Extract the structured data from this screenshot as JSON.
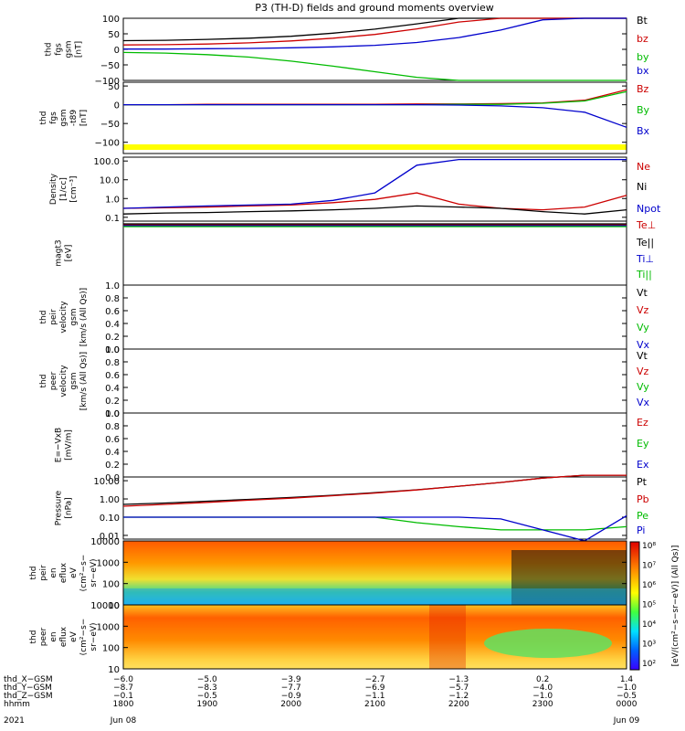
{
  "title": "P3 (TH-D) fields and ground moments overview",
  "chart_data": [
    {
      "id": "fgs_gsm",
      "type": "line",
      "ylabel_lines": [
        "thd",
        "fgs",
        "gsm",
        "[nT]"
      ],
      "yticks": [
        "100",
        "50",
        "0",
        "−50",
        "−100"
      ],
      "ylim": [
        -100,
        100
      ],
      "series": [
        {
          "name": "Bt",
          "color": "#000000",
          "values": [
            28,
            29,
            32,
            36,
            42,
            52,
            65,
            82,
            100,
            100,
            100,
            100,
            100
          ]
        },
        {
          "name": "bz",
          "color": "#cc0000",
          "values": [
            14,
            15,
            17,
            21,
            27,
            36,
            48,
            66,
            88,
            100,
            100,
            100,
            100
          ]
        },
        {
          "name": "by",
          "color": "#00bb00",
          "values": [
            -10,
            -12,
            -17,
            -25,
            -38,
            -54,
            -72,
            -90,
            -100,
            -100,
            -100,
            -100,
            -100
          ]
        },
        {
          "name": "bx",
          "color": "#0000cc",
          "values": [
            1,
            1,
            2,
            3,
            5,
            8,
            13,
            22,
            38,
            62,
            95,
            100,
            100
          ]
        }
      ]
    },
    {
      "id": "fgs_gsm_t89",
      "type": "line",
      "ylabel_lines": [
        "thd",
        "fgs",
        "gsm",
        "-t89",
        "[nT]"
      ],
      "yticks": [
        "50",
        "0",
        "−50",
        "−100"
      ],
      "ylim": [
        -130,
        60
      ],
      "series": [
        {
          "name": "Bz",
          "color": "#cc0000",
          "values": [
            0,
            0,
            1,
            1,
            1,
            1,
            1,
            2,
            2,
            3,
            5,
            12,
            40
          ]
        },
        {
          "name": "By",
          "color": "#00bb00",
          "values": [
            0,
            0,
            0,
            0,
            0,
            0,
            0,
            0,
            1,
            1,
            4,
            10,
            35
          ]
        },
        {
          "name": "Bx",
          "color": "#0000cc",
          "values": [
            0,
            0,
            0,
            0,
            0,
            0,
            0,
            0,
            -1,
            -3,
            -8,
            -20,
            -60
          ]
        }
      ]
    },
    {
      "id": "density",
      "type": "line",
      "yscale": "log",
      "ylabel_lines": [
        "Density",
        "[1/cc]",
        "[cm⁻³]"
      ],
      "yticks": [
        "100.0",
        "10.0",
        "1.0",
        "0.1"
      ],
      "series": [
        {
          "name": "Ne",
          "color": "#cc0000",
          "values": [
            0.3,
            0.32,
            0.35,
            0.4,
            0.45,
            0.6,
            0.9,
            2.0,
            0.5,
            0.3,
            0.25,
            0.35,
            1.5
          ]
        },
        {
          "name": "Ni",
          "color": "#000000",
          "values": [
            0.15,
            0.17,
            0.18,
            0.2,
            0.22,
            0.25,
            0.3,
            0.4,
            0.35,
            0.3,
            0.2,
            0.15,
            0.25
          ]
        },
        {
          "name": "Npot",
          "color": "#0000cc",
          "values": [
            0.3,
            0.35,
            0.4,
            0.45,
            0.5,
            0.8,
            2.0,
            60,
            120,
            120,
            120,
            120,
            120
          ]
        }
      ]
    },
    {
      "id": "magt3",
      "type": "line",
      "ylabel_lines": [
        "magt3",
        "[eV]"
      ],
      "series_labels": [
        "Te⊥",
        "Te||",
        "Ti⊥",
        "Ti||"
      ],
      "series_colors": [
        "#cc0000",
        "#000000",
        "#0000cc",
        "#00bb00"
      ]
    },
    {
      "id": "peir_velocity",
      "type": "line",
      "ylabel_lines": [
        "thd",
        "peir",
        "velocity",
        "gsm",
        "[km/s (All Qs)]"
      ],
      "yticks": [
        "1.0",
        "0.8",
        "0.6",
        "0.4",
        "0.2",
        "0.0"
      ],
      "ylim": [
        0,
        1
      ],
      "series_labels": [
        "Vt",
        "Vz",
        "Vy",
        "Vx"
      ],
      "series_colors": [
        "#000000",
        "#cc0000",
        "#00bb00",
        "#0000cc"
      ]
    },
    {
      "id": "peer_velocity",
      "type": "line",
      "ylabel_lines": [
        "thd",
        "peer",
        "velocity",
        "gsm",
        "[km/s (All Qs)]"
      ],
      "yticks": [
        "1.0",
        "0.8",
        "0.6",
        "0.4",
        "0.2",
        "0.0"
      ],
      "ylim": [
        0,
        1
      ],
      "series_labels": [
        "Vt",
        "Vz",
        "Vy",
        "Vx"
      ],
      "series_colors": [
        "#000000",
        "#cc0000",
        "#00bb00",
        "#0000cc"
      ]
    },
    {
      "id": "efield",
      "type": "line",
      "ylabel_lines": [
        "E=−VxB",
        "[mV/m]"
      ],
      "yticks": [
        "1.0",
        "0.8",
        "0.6",
        "0.4",
        "0.2",
        "0.0"
      ],
      "ylim": [
        0,
        1
      ],
      "series_labels": [
        "Ez",
        "Ey",
        "Ex"
      ],
      "series_colors": [
        "#cc0000",
        "#00bb00",
        "#0000cc"
      ]
    },
    {
      "id": "pressure",
      "type": "line",
      "yscale": "log",
      "ylabel_lines": [
        "Pressure",
        "[nPa]"
      ],
      "yticks": [
        "10.00",
        "1.00",
        "0.10",
        "0.01"
      ],
      "series": [
        {
          "name": "Pt",
          "color": "#000000",
          "values": [
            0.5,
            0.6,
            0.75,
            0.95,
            1.2,
            1.6,
            2.2,
            3.2,
            5,
            8,
            14,
            20,
            20
          ]
        },
        {
          "name": "Pb",
          "color": "#cc0000",
          "values": [
            0.4,
            0.5,
            0.65,
            0.85,
            1.1,
            1.5,
            2.1,
            3.1,
            5,
            8,
            14,
            20,
            20
          ]
        },
        {
          "name": "Pe",
          "color": "#00bb00",
          "values": [
            0.1,
            0.1,
            0.1,
            0.1,
            0.1,
            0.1,
            0.1,
            0.05,
            0.03,
            0.02,
            0.02,
            0.02,
            0.03
          ]
        },
        {
          "name": "Pi",
          "color": "#0000cc",
          "values": [
            0.1,
            0.1,
            0.1,
            0.1,
            0.1,
            0.1,
            0.1,
            0.1,
            0.1,
            0.08,
            0.02,
            0.005,
            0.12
          ]
        }
      ]
    },
    {
      "id": "peir_eflux",
      "type": "heatmap",
      "ylabel_lines": [
        "thd",
        "peir",
        "en",
        "eflux",
        "eV",
        "(cm²−s−",
        "sr−eV)"
      ],
      "yticks": [
        "10000",
        "1000",
        "100",
        "10"
      ]
    },
    {
      "id": "peer_eflux",
      "type": "heatmap",
      "ylabel_lines": [
        "thd",
        "peer",
        "en",
        "eflux",
        "eV",
        "(cm²−s−",
        "sr−eV)"
      ],
      "yticks": [
        "10000",
        "1000",
        "100",
        "10"
      ]
    }
  ],
  "colorbar": {
    "label": "[eV/(cm²−s−sr−eV)] (All Qs)]",
    "ticks": [
      "10⁸",
      "10⁷",
      "10⁶",
      "10⁵",
      "10⁴",
      "10³",
      "10²"
    ]
  },
  "xaxis": {
    "rows": [
      {
        "label": "thd_X−GSM",
        "values": [
          "−6.0",
          "−5.0",
          "−3.9",
          "−2.7",
          "−1.3",
          "0.2",
          "1.4"
        ]
      },
      {
        "label": "thd_Y−GSM",
        "values": [
          "−8.7",
          "−8.3",
          "−7.7",
          "−6.9",
          "−5.7",
          "−4.0",
          "−1.0"
        ]
      },
      {
        "label": "thd_Z−GSM",
        "values": [
          "−0.1",
          "−0.5",
          "−0.9",
          "−1.1",
          "−1.2",
          "−1.0",
          "−0.5"
        ]
      },
      {
        "label": "hhmm",
        "values": [
          "1800",
          "1900",
          "2000",
          "2100",
          "2200",
          "2300",
          "0000"
        ]
      }
    ],
    "year": "2021",
    "start_date": "Jun 08",
    "end_date": "Jun 09"
  }
}
